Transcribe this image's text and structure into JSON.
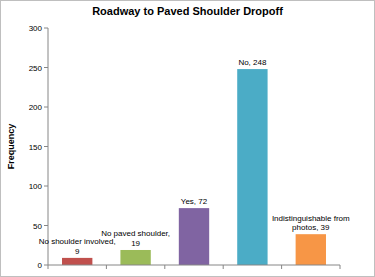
{
  "chart_data": {
    "type": "bar",
    "title": "Roadway to Paved Shoulder Dropoff",
    "y_label": "Frequency",
    "categories": [
      null,
      null,
      null,
      null,
      null
    ],
    "values": [
      9,
      19,
      72,
      248,
      39
    ],
    "value_labels": [
      "No shoulder involved, 9",
      "No paved shoulder, 19",
      "Yes, 72",
      "No, 248",
      "Indistinguishable from photos, 39"
    ],
    "colors": [
      "#c0504d",
      "#9bbb59",
      "#8064a2",
      "#4bacc6",
      "#f79646"
    ],
    "ylim": [
      0,
      300
    ],
    "yticks": [
      0,
      50,
      100,
      150,
      200,
      250,
      300
    ],
    "grid": false,
    "data_labels": true,
    "tick_labels": "y"
  }
}
